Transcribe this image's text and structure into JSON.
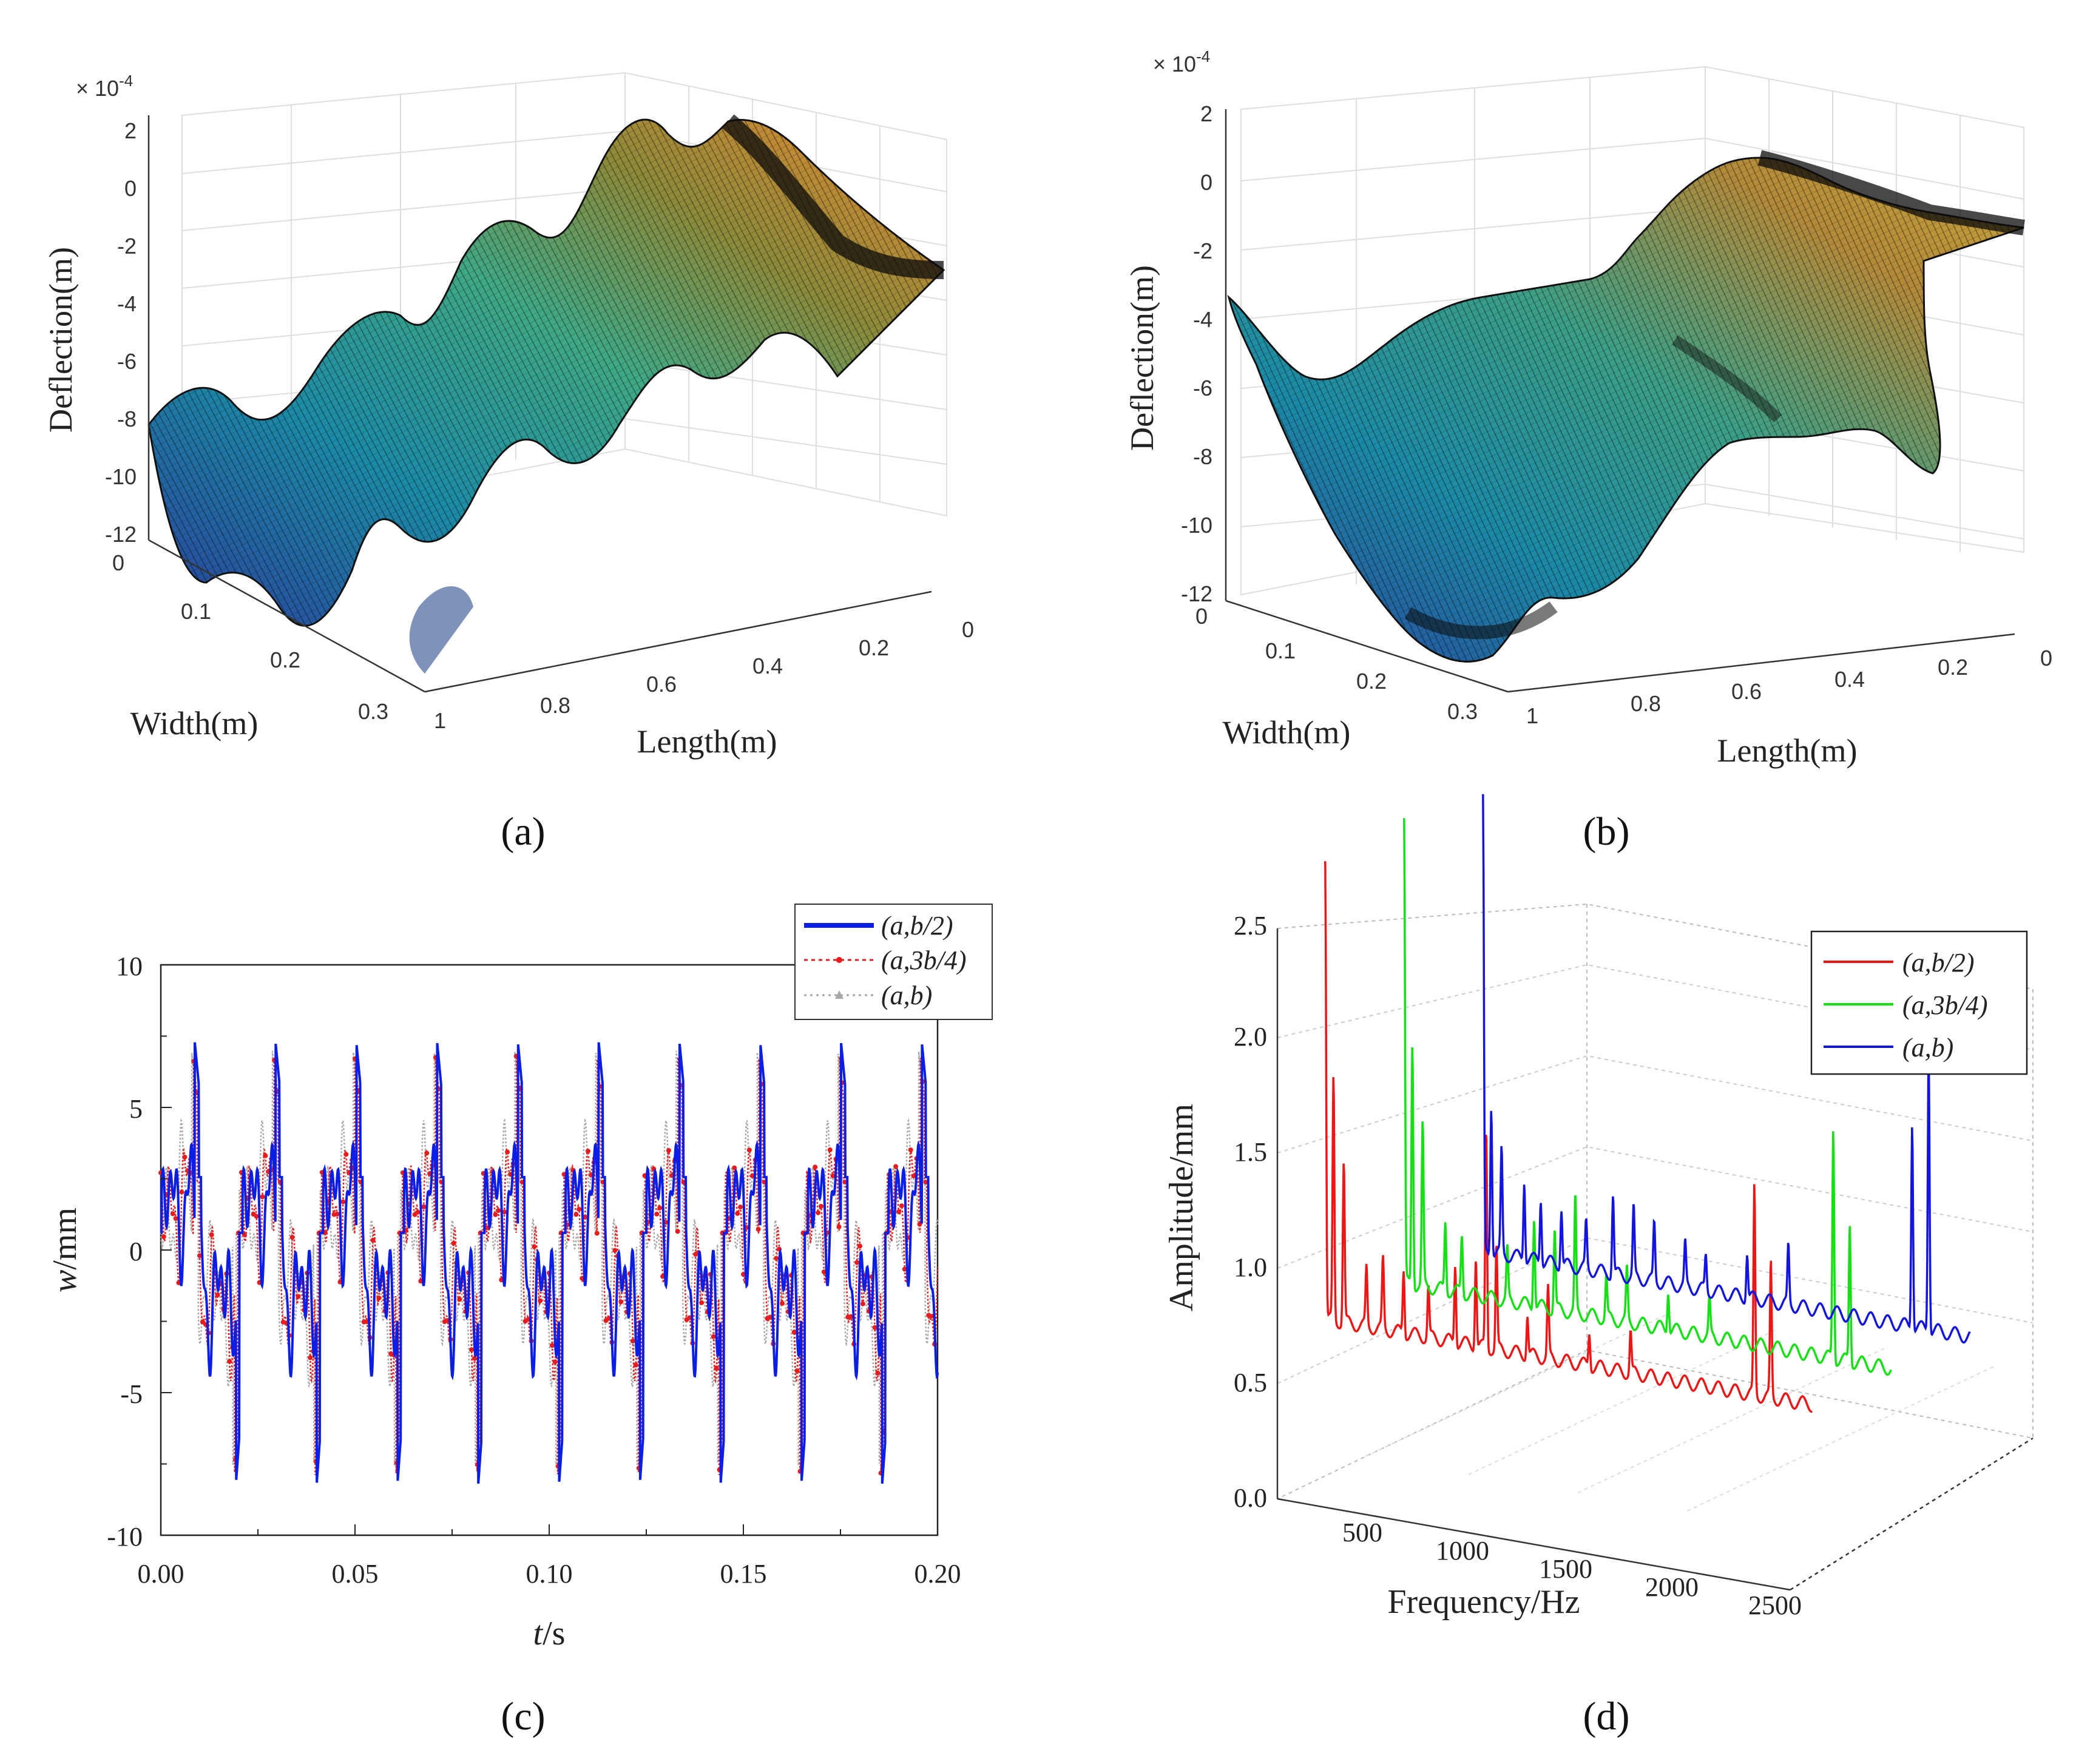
{
  "chart_data": [
    {
      "id": "a",
      "type": "surface",
      "panel_label": "(a)",
      "zlabel": "Deflection(m)",
      "xlabel": "Width(m)",
      "ylabel": "Length(m)",
      "zscale": "× 10^-4",
      "zscale_base": "× 10",
      "zscale_exp": "-4",
      "zticks": [
        "2",
        "0",
        "-2",
        "-4",
        "-6",
        "-8",
        "-10",
        "-12"
      ],
      "zlim": [
        -12,
        2
      ],
      "width_ticks": [
        "0",
        "0.1",
        "0.2",
        "0.3"
      ],
      "length_ticks": [
        "1",
        "0.8",
        "0.6",
        "0.4",
        "0.2",
        "0"
      ],
      "colormap": "parula"
    },
    {
      "id": "b",
      "type": "surface",
      "panel_label": "(b)",
      "zlabel": "Deflection(m)",
      "xlabel": "Width(m)",
      "ylabel": "Length(m)",
      "zscale": "× 10^-4",
      "zscale_base": "× 10",
      "zscale_exp": "-4",
      "zticks": [
        "2",
        "0",
        "-2",
        "-4",
        "-6",
        "-8",
        "-10",
        "-12"
      ],
      "zlim": [
        -12,
        2
      ],
      "width_ticks": [
        "0",
        "0.1",
        "0.2",
        "0.3"
      ],
      "length_ticks": [
        "1",
        "0.8",
        "0.6",
        "0.4",
        "0.2",
        "0"
      ],
      "colormap": "parula"
    },
    {
      "id": "c",
      "type": "line",
      "panel_label": "(c)",
      "xlabel": "t/s",
      "xlabel_var": "t",
      "xlabel_unit": "/s",
      "ylabel": "w/mm",
      "ylabel_var": "w",
      "ylabel_unit": "/mm",
      "xlim": [
        0,
        0.2
      ],
      "ylim": [
        -10,
        10
      ],
      "xticks": [
        "0.00",
        "0.05",
        "0.10",
        "0.15",
        "0.20"
      ],
      "yticks": [
        "10",
        "5",
        "0",
        "-5",
        "-10"
      ],
      "period": 0.0208,
      "series": [
        {
          "name": "(a,b/2)",
          "color": "#0a1ee6",
          "style": "solid",
          "peak": 7.3,
          "trough": -8.2
        },
        {
          "name": "(a,3b/4)",
          "color": "#e81c1c",
          "style": "dotted",
          "peak": 6.8,
          "trough": -7.9
        },
        {
          "name": "(a,b)",
          "color": "#a8a8a8",
          "style": "dotted",
          "peak": 7.0,
          "trough": -7.6
        }
      ]
    },
    {
      "id": "d",
      "type": "line3d",
      "panel_label": "(d)",
      "xlabel": "Frequency/Hz",
      "ylabel": "Amplitude/mm",
      "xticks": [
        "500",
        "1000",
        "1500",
        "2000",
        "2500"
      ],
      "zticks": [
        "0.0",
        "0.5",
        "1.0",
        "1.5",
        "2.0",
        "2.5"
      ],
      "zlim": [
        0,
        2.5
      ],
      "xlim": [
        300,
        2700
      ],
      "series": [
        {
          "name": "(a,b/2)",
          "color": "#ee1515",
          "baseline": 0.12,
          "peaks": [
            [
              320,
              2.0
            ],
            [
              360,
              1.05
            ],
            [
              410,
              0.7
            ],
            [
              520,
              0.25
            ],
            [
              600,
              0.3
            ],
            [
              700,
              0.28
            ],
            [
              820,
              0.22
            ],
            [
              950,
              0.35
            ],
            [
              1050,
              0.4
            ],
            [
              1100,
              0.95
            ],
            [
              1150,
              0.45
            ],
            [
              1300,
              0.18
            ],
            [
              1400,
              0.3
            ],
            [
              1600,
              0.15
            ],
            [
              1800,
              0.18
            ],
            [
              2400,
              0.9
            ],
            [
              2480,
              0.58
            ]
          ]
        },
        {
          "name": "(a,3b/4)",
          "color": "#14e014",
          "baseline": 0.12,
          "peaks": [
            [
              320,
              2.0
            ],
            [
              360,
              1.05
            ],
            [
              410,
              0.7
            ],
            [
              520,
              0.3
            ],
            [
              600,
              0.25
            ],
            [
              820,
              0.22
            ],
            [
              950,
              0.4
            ],
            [
              1050,
              0.35
            ],
            [
              1150,
              0.5
            ],
            [
              1300,
              0.18
            ],
            [
              1400,
              0.22
            ],
            [
              1600,
              0.18
            ],
            [
              1800,
              0.15
            ],
            [
              2400,
              1.0
            ],
            [
              2480,
              0.6
            ]
          ]
        },
        {
          "name": "(a,b)",
          "color": "#1414e0",
          "baseline": 0.1,
          "peaks": [
            [
              320,
              1.95
            ],
            [
              360,
              0.65
            ],
            [
              410,
              0.45
            ],
            [
              520,
              0.35
            ],
            [
              600,
              0.28
            ],
            [
              700,
              0.25
            ],
            [
              820,
              0.2
            ],
            [
              950,
              0.35
            ],
            [
              1050,
              0.3
            ],
            [
              1150,
              0.25
            ],
            [
              1300,
              0.18
            ],
            [
              1400,
              0.15
            ],
            [
              1600,
              0.2
            ],
            [
              1800,
              0.25
            ],
            [
              2400,
              0.9
            ],
            [
              2480,
              1.25
            ]
          ]
        }
      ]
    }
  ]
}
